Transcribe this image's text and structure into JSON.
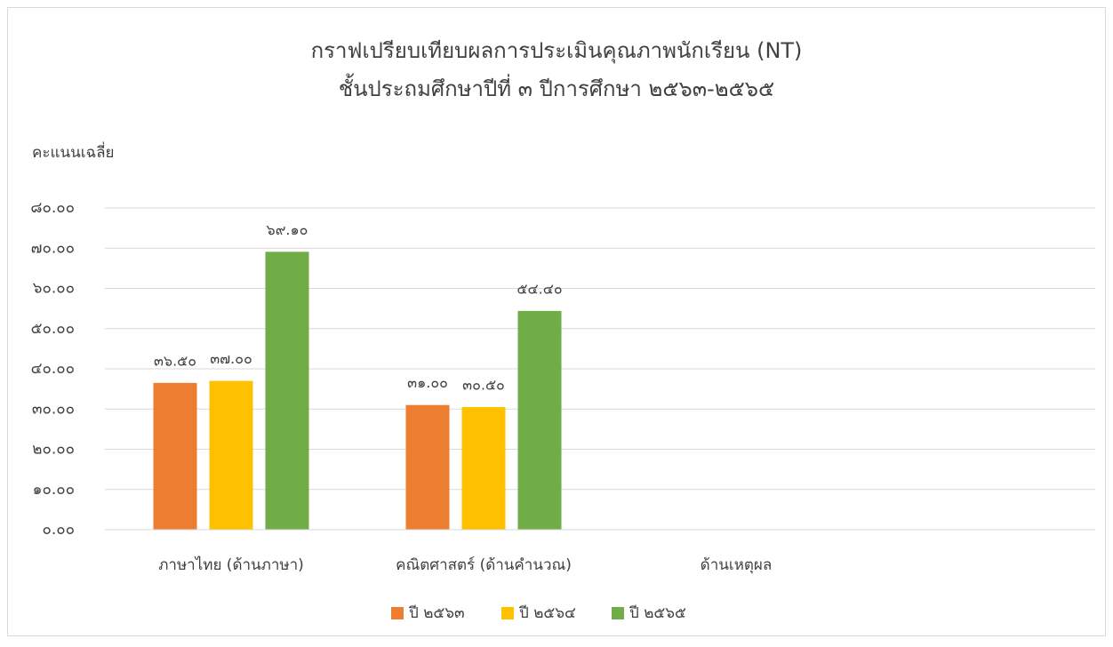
{
  "chart_data": {
    "type": "bar",
    "title": "กราฟเปรียบเทียบผลการประเมินคุณภาพนักเรียน (NT)",
    "subtitle": "ชั้นประถมศึกษาปีที่ ๓ ปีการศึกษา ๒๕๖๓-๒๕๖๕",
    "y_label": "คะแนนเฉลี่ย",
    "categories": [
      "ภาษาไทย (ด้านภาษา)",
      "คณิตศาสตร์ (ด้านคำนวณ)",
      "ด้านเหตุผล"
    ],
    "series": [
      {
        "name": "ปี ๒๕๖๓",
        "color": "#ed7d31",
        "values": [
          36.5,
          31.0,
          null
        ],
        "value_labels": [
          "๓๖.๕๐",
          "๓๑.๐๐",
          null
        ]
      },
      {
        "name": "ปี ๒๕๖๔",
        "color": "#ffc000",
        "values": [
          37.0,
          30.5,
          null
        ],
        "value_labels": [
          "๓๗.๐๐",
          "๓๐.๕๐",
          null
        ]
      },
      {
        "name": "ปี ๒๕๖๕",
        "color": "#70ad47",
        "values": [
          69.1,
          54.4,
          null
        ],
        "value_labels": [
          "๖๙.๑๐",
          "๕๔.๔๐",
          null
        ]
      }
    ],
    "ylim": [
      0,
      80
    ],
    "yticks": [
      {
        "value": 0,
        "label": "๐.๐๐"
      },
      {
        "value": 10,
        "label": "๑๐.๐๐"
      },
      {
        "value": 20,
        "label": "๒๐.๐๐"
      },
      {
        "value": 30,
        "label": "๓๐.๐๐"
      },
      {
        "value": 40,
        "label": "๔๐.๐๐"
      },
      {
        "value": 50,
        "label": "๕๐.๐๐"
      },
      {
        "value": 60,
        "label": "๖๐.๐๐"
      },
      {
        "value": 70,
        "label": "๗๐.๐๐"
      },
      {
        "value": 80,
        "label": "๘๐.๐๐"
      }
    ],
    "grid": true,
    "legend": "bottom"
  }
}
